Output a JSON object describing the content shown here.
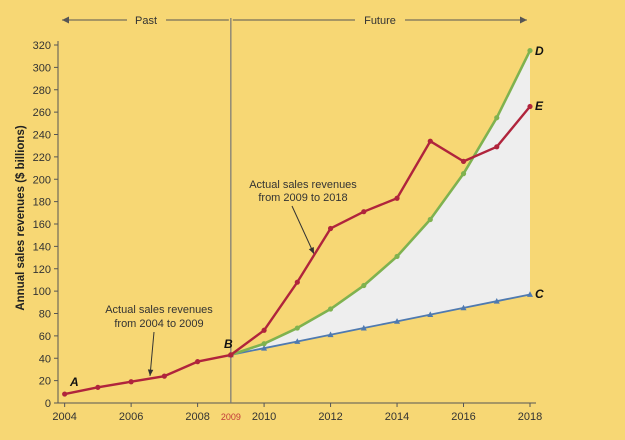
{
  "chart_data": {
    "type": "line",
    "ylabel": "Annual sales revenues ($ billions)",
    "xlim": [
      2003.8,
      2018
    ],
    "ylim": [
      0,
      320
    ],
    "x_ticks": [
      "2004",
      "2006",
      "2008",
      "2010",
      "2012",
      "2014",
      "2016",
      "2018"
    ],
    "y_ticks": [
      "0",
      "20",
      "40",
      "60",
      "80",
      "100",
      "120",
      "140",
      "160",
      "180",
      "200",
      "220",
      "240",
      "260",
      "280",
      "300",
      "320"
    ],
    "split_year_label": "2009",
    "period_labels": {
      "past": "Past",
      "future": "Future"
    },
    "annotations": {
      "actual_2004_2009": [
        "Actual sales revenues",
        "from 2004 to 2009"
      ],
      "actual_2009_2018": [
        "Actual sales revenues",
        "from 2009 to 2018"
      ]
    },
    "point_labels": {
      "A": "A",
      "B": "B",
      "C": "C",
      "D": "D",
      "E": "E"
    },
    "colors": {
      "actual": "#b0243c",
      "green": "#7fb24f",
      "blue": "#4f7ab0",
      "shade": "#eeeeee",
      "background": "#f7d774"
    },
    "series": [
      {
        "key": "actual_past",
        "x": [
          2004,
          2005,
          2006,
          2007,
          2008,
          2009
        ],
        "values": [
          8,
          14,
          19,
          24,
          37,
          43
        ]
      },
      {
        "key": "actual_future_E",
        "x": [
          2009,
          2010,
          2011,
          2012,
          2013,
          2014,
          2015,
          2016,
          2017,
          2018
        ],
        "values": [
          43,
          65,
          108,
          156,
          171,
          183,
          234,
          216,
          229,
          265
        ]
      },
      {
        "key": "curve_D",
        "x": [
          2009,
          2010,
          2011,
          2012,
          2013,
          2014,
          2015,
          2016,
          2017,
          2018
        ],
        "values": [
          43,
          53,
          67,
          84,
          105,
          131,
          164,
          205,
          255,
          315
        ]
      },
      {
        "key": "line_C",
        "x": [
          2009,
          2010,
          2011,
          2012,
          2013,
          2014,
          2015,
          2016,
          2017,
          2018
        ],
        "values": [
          43,
          49,
          55,
          61,
          67,
          73,
          79,
          85,
          91,
          97
        ]
      }
    ]
  }
}
